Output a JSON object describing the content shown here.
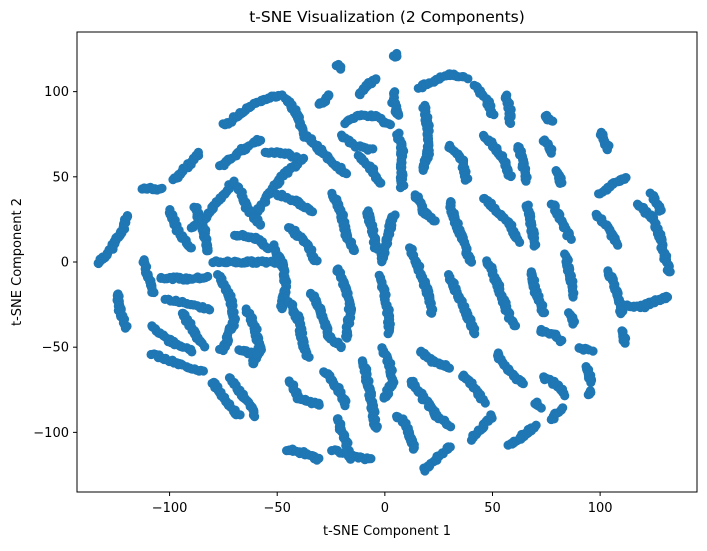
{
  "chart_data": {
    "type": "scatter",
    "title": "t-SNE Visualization (2 Components)",
    "xlabel": "t-SNE Component 1",
    "ylabel": "t-SNE Component 2",
    "xlim": [
      -143,
      145
    ],
    "ylim": [
      -135,
      135
    ],
    "xticks": [
      -100,
      -50,
      0,
      50,
      100
    ],
    "yticks": [
      -100,
      -50,
      0,
      50,
      100
    ],
    "xtick_labels": [
      "−100",
      "−50",
      "0",
      "50",
      "100"
    ],
    "ytick_labels": [
      "−100",
      "−50",
      "0",
      "50",
      "100"
    ],
    "grid": false,
    "legend": "none",
    "point_color": "#1f77b4",
    "curves": [
      [
        [
          -133,
          -1
        ],
        [
          -127,
          8
        ],
        [
          -122,
          18
        ],
        [
          -120,
          27
        ]
      ],
      [
        [
          -124,
          -18
        ],
        [
          -123,
          -28
        ],
        [
          -120,
          -38
        ]
      ],
      [
        [
          -112,
          2
        ],
        [
          -110,
          -8
        ],
        [
          -108,
          -18
        ]
      ],
      [
        [
          -113,
          43
        ],
        [
          -103,
          43
        ]
      ],
      [
        [
          -98,
          48
        ],
        [
          -92,
          56
        ],
        [
          -86,
          64
        ]
      ],
      [
        [
          -100,
          30
        ],
        [
          -96,
          18
        ],
        [
          -90,
          8
        ]
      ],
      [
        [
          -104,
          -9
        ],
        [
          -92,
          -10
        ],
        [
          -82,
          -9
        ]
      ],
      [
        [
          -102,
          -22
        ],
        [
          -92,
          -24
        ],
        [
          -82,
          -28
        ]
      ],
      [
        [
          -108,
          -38
        ],
        [
          -100,
          -46
        ],
        [
          -90,
          -52
        ]
      ],
      [
        [
          -108,
          -54
        ],
        [
          -96,
          -60
        ],
        [
          -84,
          -64
        ]
      ],
      [
        [
          -88,
          32
        ],
        [
          -84,
          18
        ],
        [
          -82,
          6
        ]
      ],
      [
        [
          -90,
          20
        ],
        [
          -82,
          28
        ],
        [
          -76,
          38
        ],
        [
          -70,
          48
        ]
      ],
      [
        [
          -94,
          -30
        ],
        [
          -88,
          -42
        ],
        [
          -84,
          -50
        ]
      ],
      [
        [
          -77,
          -8
        ],
        [
          -72,
          -20
        ],
        [
          -70,
          -34
        ],
        [
          -74,
          -48
        ],
        [
          -76,
          -52
        ]
      ],
      [
        [
          -64,
          -28
        ],
        [
          -60,
          -40
        ],
        [
          -58,
          -52
        ],
        [
          -62,
          -60
        ]
      ],
      [
        [
          -72,
          -68
        ],
        [
          -66,
          -78
        ],
        [
          -60,
          -90
        ]
      ],
      [
        [
          -80,
          -70
        ],
        [
          -74,
          -82
        ],
        [
          -68,
          -90
        ]
      ],
      [
        [
          -68,
          -52
        ],
        [
          -60,
          -54
        ]
      ],
      [
        [
          -76,
          56
        ],
        [
          -66,
          66
        ],
        [
          -58,
          72
        ]
      ],
      [
        [
          -75,
          80
        ],
        [
          -66,
          88
        ],
        [
          -58,
          95
        ],
        [
          -48,
          98
        ]
      ],
      [
        [
          -70,
          16
        ],
        [
          -60,
          14
        ],
        [
          -54,
          8
        ]
      ],
      [
        [
          -80,
          0
        ],
        [
          -70,
          0
        ],
        [
          -58,
          0
        ],
        [
          -50,
          0
        ]
      ],
      [
        [
          -52,
          10
        ],
        [
          -48,
          0
        ],
        [
          -46,
          -14
        ],
        [
          -48,
          -28
        ]
      ],
      [
        [
          -60,
          28
        ],
        [
          -54,
          40
        ],
        [
          -48,
          50
        ],
        [
          -40,
          58
        ]
      ],
      [
        [
          -68,
          44
        ],
        [
          -64,
          32
        ],
        [
          -58,
          22
        ]
      ],
      [
        [
          -56,
          64
        ],
        [
          -46,
          64
        ],
        [
          -38,
          60
        ]
      ],
      [
        [
          -46,
          96
        ],
        [
          -40,
          86
        ],
        [
          -38,
          74
        ]
      ],
      [
        [
          -36,
          74
        ],
        [
          -30,
          66
        ],
        [
          -24,
          58
        ],
        [
          -18,
          52
        ]
      ],
      [
        [
          -50,
          40
        ],
        [
          -42,
          36
        ],
        [
          -34,
          30
        ]
      ],
      [
        [
          -44,
          20
        ],
        [
          -36,
          10
        ],
        [
          -32,
          0
        ]
      ],
      [
        [
          -44,
          -24
        ],
        [
          -40,
          -34
        ],
        [
          -38,
          -48
        ],
        [
          -36,
          -56
        ]
      ],
      [
        [
          -34,
          -18
        ],
        [
          -30,
          -28
        ],
        [
          -26,
          -44
        ],
        [
          -20,
          -50
        ]
      ],
      [
        [
          -44,
          -70
        ],
        [
          -40,
          -80
        ],
        [
          -30,
          -84
        ]
      ],
      [
        [
          -46,
          -110
        ],
        [
          -38,
          -112
        ],
        [
          -30,
          -116
        ]
      ],
      [
        [
          -28,
          -64
        ],
        [
          -22,
          -74
        ],
        [
          -18,
          -84
        ]
      ],
      [
        [
          -22,
          -92
        ],
        [
          -18,
          -106
        ],
        [
          -16,
          -116
        ]
      ],
      [
        [
          -24,
          -110
        ],
        [
          -16,
          -114
        ],
        [
          -6,
          -116
        ]
      ],
      [
        [
          -30,
          92
        ],
        [
          -26,
          98
        ]
      ],
      [
        [
          -22,
          116
        ],
        [
          -20,
          114
        ]
      ],
      [
        [
          -12,
          98
        ],
        [
          -8,
          104
        ],
        [
          -4,
          108
        ]
      ],
      [
        [
          -18,
          82
        ],
        [
          -12,
          86
        ],
        [
          -4,
          86
        ],
        [
          2,
          80
        ]
      ],
      [
        [
          -20,
          74
        ],
        [
          -14,
          68
        ],
        [
          -6,
          66
        ]
      ],
      [
        [
          -24,
          40
        ],
        [
          -20,
          28
        ],
        [
          -18,
          16
        ],
        [
          -14,
          6
        ]
      ],
      [
        [
          -22,
          -4
        ],
        [
          -18,
          -16
        ],
        [
          -16,
          -30
        ],
        [
          -18,
          -44
        ]
      ],
      [
        [
          -12,
          62
        ],
        [
          -6,
          54
        ],
        [
          -2,
          46
        ]
      ],
      [
        [
          -8,
          30
        ],
        [
          -6,
          20
        ],
        [
          -4,
          8
        ]
      ],
      [
        [
          -10,
          -58
        ],
        [
          -8,
          -70
        ],
        [
          -6,
          -84
        ],
        [
          -4,
          -98
        ]
      ],
      [
        [
          -2,
          -50
        ],
        [
          2,
          -60
        ],
        [
          4,
          -70
        ],
        [
          0,
          -80
        ]
      ],
      [
        [
          4,
          120
        ],
        [
          6,
          122
        ]
      ],
      [
        [
          4,
          100
        ],
        [
          4,
          94
        ],
        [
          6,
          86
        ]
      ],
      [
        [
          6,
          76
        ],
        [
          8,
          66
        ],
        [
          8,
          56
        ],
        [
          8,
          44
        ]
      ],
      [
        [
          4,
          28
        ],
        [
          2,
          18
        ],
        [
          0,
          8
        ],
        [
          -2,
          0
        ]
      ],
      [
        [
          -2,
          -8
        ],
        [
          0,
          -20
        ],
        [
          2,
          -32
        ],
        [
          2,
          -42
        ]
      ],
      [
        [
          6,
          -90
        ],
        [
          10,
          -96
        ],
        [
          14,
          -110
        ]
      ],
      [
        [
          18,
          -122
        ],
        [
          24,
          -116
        ],
        [
          30,
          -108
        ]
      ],
      [
        [
          12,
          -70
        ],
        [
          18,
          -80
        ],
        [
          24,
          -90
        ],
        [
          30,
          -96
        ]
      ],
      [
        [
          16,
          -52
        ],
        [
          22,
          -58
        ],
        [
          30,
          -62
        ]
      ],
      [
        [
          16,
          102
        ],
        [
          22,
          106
        ],
        [
          30,
          110
        ],
        [
          38,
          108
        ]
      ],
      [
        [
          18,
          92
        ],
        [
          20,
          80
        ],
        [
          20,
          64
        ],
        [
          18,
          54
        ]
      ],
      [
        [
          14,
          40
        ],
        [
          18,
          30
        ],
        [
          24,
          24
        ]
      ],
      [
        [
          12,
          8
        ],
        [
          16,
          -4
        ],
        [
          20,
          -18
        ],
        [
          22,
          -30
        ]
      ],
      [
        [
          30,
          68
        ],
        [
          36,
          60
        ],
        [
          38,
          48
        ]
      ],
      [
        [
          30,
          36
        ],
        [
          32,
          26
        ],
        [
          36,
          14
        ],
        [
          40,
          0
        ]
      ],
      [
        [
          30,
          -8
        ],
        [
          34,
          -20
        ],
        [
          38,
          -30
        ],
        [
          42,
          -42
        ]
      ],
      [
        [
          36,
          -66
        ],
        [
          42,
          -74
        ],
        [
          46,
          -82
        ]
      ],
      [
        [
          40,
          -104
        ],
        [
          46,
          -96
        ],
        [
          50,
          -90
        ]
      ],
      [
        [
          42,
          104
        ],
        [
          48,
          94
        ],
        [
          50,
          86
        ]
      ],
      [
        [
          46,
          74
        ],
        [
          52,
          66
        ],
        [
          56,
          58
        ],
        [
          58,
          50
        ]
      ],
      [
        [
          46,
          38
        ],
        [
          52,
          30
        ],
        [
          58,
          22
        ],
        [
          62,
          12
        ]
      ],
      [
        [
          48,
          0
        ],
        [
          52,
          -12
        ],
        [
          56,
          -26
        ],
        [
          60,
          -38
        ]
      ],
      [
        [
          52,
          -54
        ],
        [
          58,
          -64
        ],
        [
          64,
          -72
        ]
      ],
      [
        [
          58,
          -108
        ],
        [
          64,
          -102
        ],
        [
          70,
          -96
        ]
      ],
      [
        [
          56,
          98
        ],
        [
          58,
          90
        ],
        [
          58,
          82
        ]
      ],
      [
        [
          62,
          68
        ],
        [
          64,
          58
        ],
        [
          66,
          48
        ]
      ],
      [
        [
          66,
          34
        ],
        [
          68,
          22
        ],
        [
          70,
          10
        ]
      ],
      [
        [
          68,
          -6
        ],
        [
          70,
          -18
        ],
        [
          74,
          -30
        ]
      ],
      [
        [
          72,
          -40
        ],
        [
          78,
          -42
        ],
        [
          82,
          -46
        ]
      ],
      [
        [
          74,
          -68
        ],
        [
          80,
          -72
        ],
        [
          84,
          -78
        ]
      ],
      [
        [
          70,
          -82
        ],
        [
          72,
          -86
        ]
      ],
      [
        [
          78,
          -92
        ],
        [
          82,
          -86
        ]
      ],
      [
        [
          74,
          86
        ],
        [
          78,
          82
        ]
      ],
      [
        [
          74,
          72
        ],
        [
          78,
          64
        ]
      ],
      [
        [
          80,
          54
        ],
        [
          82,
          46
        ]
      ],
      [
        [
          78,
          34
        ],
        [
          82,
          24
        ],
        [
          86,
          14
        ]
      ],
      [
        [
          84,
          4
        ],
        [
          86,
          -8
        ],
        [
          88,
          -20
        ]
      ],
      [
        [
          86,
          -30
        ],
        [
          88,
          -36
        ]
      ],
      [
        [
          90,
          -50
        ],
        [
          96,
          -52
        ]
      ],
      [
        [
          94,
          -62
        ],
        [
          96,
          -70
        ]
      ],
      [
        [
          94,
          -78
        ],
        [
          96,
          -76
        ]
      ],
      [
        [
          100,
          76
        ],
        [
          104,
          66
        ]
      ],
      [
        [
          100,
          40
        ],
        [
          106,
          46
        ],
        [
          112,
          50
        ]
      ],
      [
        [
          98,
          28
        ],
        [
          104,
          20
        ],
        [
          108,
          10
        ]
      ],
      [
        [
          104,
          -6
        ],
        [
          108,
          -18
        ],
        [
          110,
          -30
        ]
      ],
      [
        [
          110,
          -40
        ],
        [
          112,
          -48
        ]
      ],
      [
        [
          118,
          34
        ],
        [
          124,
          26
        ],
        [
          128,
          14
        ],
        [
          130,
          4
        ],
        [
          132,
          -6
        ]
      ],
      [
        [
          112,
          -26
        ],
        [
          120,
          -26
        ],
        [
          128,
          -22
        ],
        [
          132,
          -20
        ]
      ],
      [
        [
          124,
          40
        ],
        [
          128,
          30
        ]
      ]
    ]
  }
}
